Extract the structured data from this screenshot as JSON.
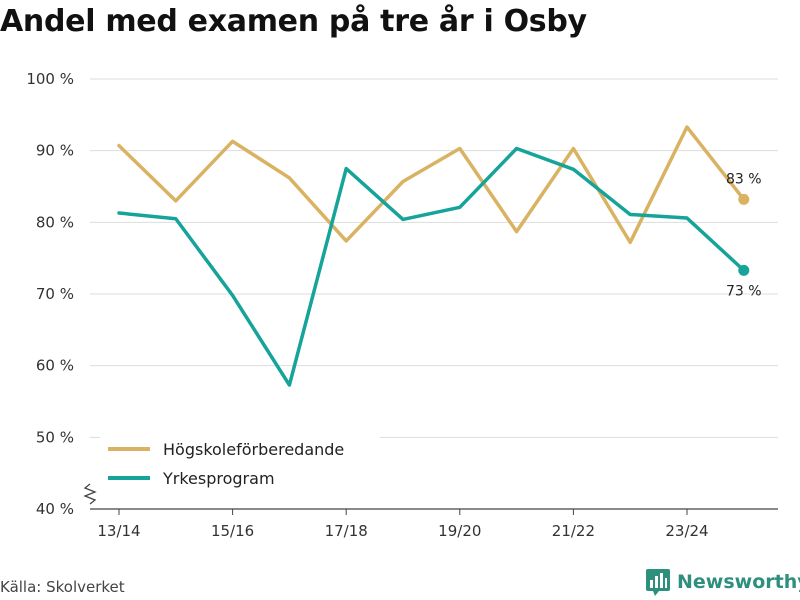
{
  "colors": {
    "series_1": "#d9b262",
    "series_2": "#16a39a",
    "grid": "#dddddd",
    "axis": "#444444",
    "brand": "#2e8f7f"
  },
  "footer": {
    "source": "Källa: Skolverket",
    "brand": "Newsworthy",
    "brand_icon": "bar-chart-logo-icon"
  },
  "chart_data": {
    "type": "line",
    "title": "Andel med examen på tre år i Osby",
    "x": [
      "13/14",
      "14/15",
      "15/16",
      "16/17",
      "17/18",
      "18/19",
      "19/20",
      "20/21",
      "21/22",
      "22/23",
      "23/24",
      "24/25"
    ],
    "x_tick_labels": [
      "13/14",
      "15/16",
      "17/18",
      "19/20",
      "21/22",
      "23/24"
    ],
    "y_tick_labels": [
      "40 %",
      "50 %",
      "60 %",
      "70 %",
      "80 %",
      "90 %",
      "100 %"
    ],
    "ylim": [
      40,
      100
    ],
    "y_axis_break": true,
    "grid": true,
    "legend_position": "bottom-left",
    "series": [
      {
        "name": "Högskoleförberedande",
        "values": [
          90.7,
          83.0,
          91.3,
          86.2,
          77.4,
          85.7,
          90.3,
          78.7,
          90.3,
          77.2,
          93.3,
          83.2
        ],
        "end_label": "83 %"
      },
      {
        "name": "Yrkesprogram",
        "values": [
          81.3,
          80.5,
          69.8,
          57.3,
          87.5,
          80.4,
          82.1,
          90.3,
          87.4,
          81.1,
          80.6,
          73.3
        ],
        "end_label": "73 %"
      }
    ]
  }
}
